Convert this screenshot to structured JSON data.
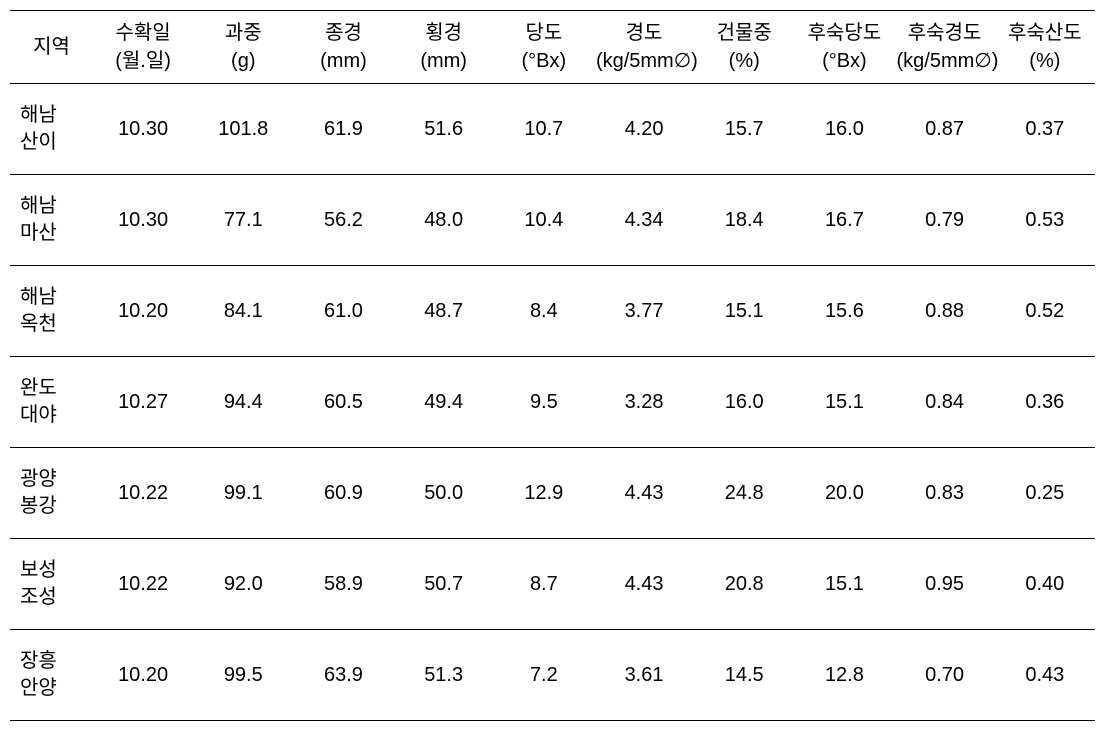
{
  "table": {
    "columns": [
      {
        "line1": "지역",
        "line2": ""
      },
      {
        "line1": "수확일",
        "line2": "(월.일)"
      },
      {
        "line1": "과중",
        "line2": "(g)"
      },
      {
        "line1": "종경",
        "line2": "(mm)"
      },
      {
        "line1": "횡경",
        "line2": "(mm)"
      },
      {
        "line1": "당도",
        "line2": "(°Bx)"
      },
      {
        "line1": "경도",
        "line2": "(kg/5mm∅)"
      },
      {
        "line1": "건물중",
        "line2": "(%)"
      },
      {
        "line1": "후숙당도",
        "line2": "(°Bx)"
      },
      {
        "line1": "후숙경도",
        "line2": "(kg/5mm∅)"
      },
      {
        "line1": "후숙산도",
        "line2": "(%)"
      }
    ],
    "rows": [
      {
        "region_line1": "해남",
        "region_line2": "산이",
        "harvest_date": "10.30",
        "weight": "101.8",
        "length": "61.9",
        "width": "51.6",
        "brix": "10.7",
        "firmness": "4.20",
        "dry_matter": "15.7",
        "post_brix": "16.0",
        "post_firmness": "0.87",
        "post_acidity": "0.37"
      },
      {
        "region_line1": "해남",
        "region_line2": "마산",
        "harvest_date": "10.30",
        "weight": "77.1",
        "length": "56.2",
        "width": "48.0",
        "brix": "10.4",
        "firmness": "4.34",
        "dry_matter": "18.4",
        "post_brix": "16.7",
        "post_firmness": "0.79",
        "post_acidity": "0.53"
      },
      {
        "region_line1": "해남",
        "region_line2": "옥천",
        "harvest_date": "10.20",
        "weight": "84.1",
        "length": "61.0",
        "width": "48.7",
        "brix": "8.4",
        "firmness": "3.77",
        "dry_matter": "15.1",
        "post_brix": "15.6",
        "post_firmness": "0.88",
        "post_acidity": "0.52"
      },
      {
        "region_line1": "완도",
        "region_line2": "대야",
        "harvest_date": "10.27",
        "weight": "94.4",
        "length": "60.5",
        "width": "49.4",
        "brix": "9.5",
        "firmness": "3.28",
        "dry_matter": "16.0",
        "post_brix": "15.1",
        "post_firmness": "0.84",
        "post_acidity": "0.36"
      },
      {
        "region_line1": "광양",
        "region_line2": "봉강",
        "harvest_date": "10.22",
        "weight": "99.1",
        "length": "60.9",
        "width": "50.0",
        "brix": "12.9",
        "firmness": "4.43",
        "dry_matter": "24.8",
        "post_brix": "20.0",
        "post_firmness": "0.83",
        "post_acidity": "0.25"
      },
      {
        "region_line1": "보성",
        "region_line2": "조성",
        "harvest_date": "10.22",
        "weight": "92.0",
        "length": "58.9",
        "width": "50.7",
        "brix": "8.7",
        "firmness": "4.43",
        "dry_matter": "20.8",
        "post_brix": "15.1",
        "post_firmness": "0.95",
        "post_acidity": "0.40"
      },
      {
        "region_line1": "장흥",
        "region_line2": "안양",
        "harvest_date": "10.20",
        "weight": "99.5",
        "length": "63.9",
        "width": "51.3",
        "brix": "7.2",
        "firmness": "3.61",
        "dry_matter": "14.5",
        "post_brix": "12.8",
        "post_firmness": "0.70",
        "post_acidity": "0.43"
      }
    ]
  }
}
